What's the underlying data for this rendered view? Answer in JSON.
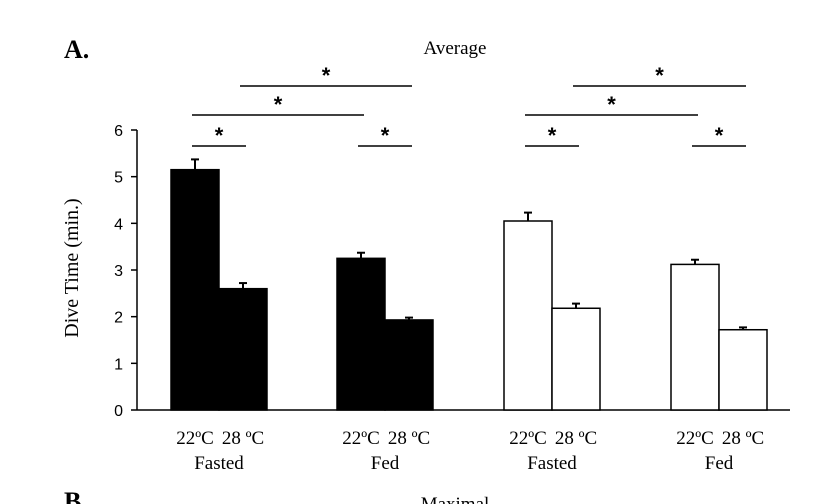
{
  "panels": {
    "top_label": "A.",
    "bottom_label": "B",
    "bottom_title_partial": "Maximal"
  },
  "chart_data": {
    "type": "bar",
    "title": "Average",
    "ylabel": "Dive Time (min.)",
    "ylim": [
      0,
      6
    ],
    "yticks": [
      0,
      1,
      2,
      3,
      4,
      5,
      6
    ],
    "colors": {
      "black_group": "#000000",
      "white_group": "#ffffff"
    },
    "groups": [
      {
        "name": "Fasted",
        "fill": "black",
        "bars": [
          {
            "label": "22ºC",
            "value": 5.15,
            "error": 0.22
          },
          {
            "label": "28 ºC",
            "value": 2.6,
            "error": 0.12
          }
        ]
      },
      {
        "name": "Fed",
        "fill": "black",
        "bars": [
          {
            "label": "22ºC",
            "value": 3.25,
            "error": 0.12
          },
          {
            "label": "28 ºC",
            "value": 1.93,
            "error": 0.05
          }
        ]
      },
      {
        "name": "Fasted",
        "fill": "white",
        "bars": [
          {
            "label": "22ºC",
            "value": 4.05,
            "error": 0.18
          },
          {
            "label": "28 ºC",
            "value": 2.18,
            "error": 0.1
          }
        ]
      },
      {
        "name": "Fed",
        "fill": "white",
        "bars": [
          {
            "label": "22ºC",
            "value": 3.12,
            "error": 0.1
          },
          {
            "label": "28 ºC",
            "value": 1.72,
            "error": 0.05
          }
        ]
      }
    ],
    "significance": [
      {
        "from": [
          0,
          0
        ],
        "to": [
          0,
          1
        ],
        "level": 1,
        "mark": "*"
      },
      {
        "from": [
          1,
          0
        ],
        "to": [
          1,
          1
        ],
        "level": 1,
        "mark": "*"
      },
      {
        "from": [
          0,
          0
        ],
        "to": [
          1,
          0
        ],
        "level": 2,
        "mark": "*"
      },
      {
        "from": [
          0,
          1
        ],
        "to": [
          1,
          1
        ],
        "level": 3,
        "mark": "*"
      },
      {
        "from": [
          2,
          0
        ],
        "to": [
          2,
          1
        ],
        "level": 1,
        "mark": "*"
      },
      {
        "from": [
          3,
          0
        ],
        "to": [
          3,
          1
        ],
        "level": 1,
        "mark": "*"
      },
      {
        "from": [
          2,
          0
        ],
        "to": [
          3,
          0
        ],
        "level": 2,
        "mark": "*"
      },
      {
        "from": [
          2,
          1
        ],
        "to": [
          3,
          1
        ],
        "level": 3,
        "mark": "*"
      }
    ]
  }
}
